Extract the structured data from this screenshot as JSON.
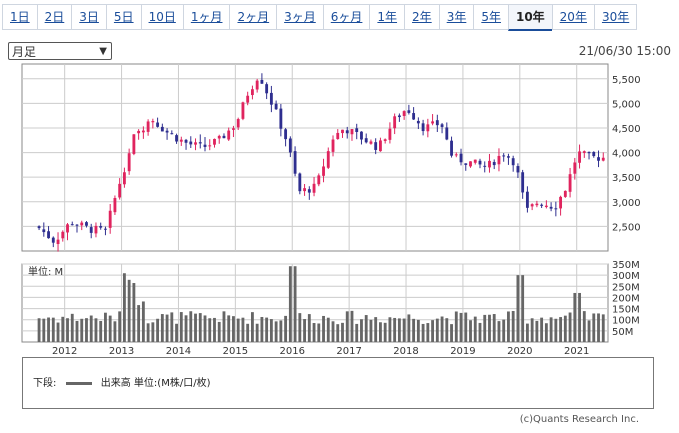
{
  "tabs": [
    "1日",
    "2日",
    "3日",
    "5日",
    "10日",
    "1ヶ月",
    "2ヶ月",
    "3ヶ月",
    "6ヶ月",
    "1年",
    "2年",
    "3年",
    "5年",
    "10年",
    "20年",
    "30年"
  ],
  "active_tab": 13,
  "period_select": "月足",
  "timestamp": "21/06/30 15:00",
  "volume_unit_label": "単位: M",
  "legend_text": "下段:",
  "legend_series_label": "出来高 単位:(M株/口/枚)",
  "copyright": "(c)Quants Research Inc.",
  "colors": {
    "up": "#e0245e",
    "down": "#2e2e8f",
    "volume": "#666666",
    "grid": "#cccccc"
  },
  "chart_data": [
    {
      "type": "candlestick",
      "y_ticks": [
        "2,500",
        "3,000",
        "3,500",
        "4,000",
        "4,500",
        "5,000",
        "5,500"
      ],
      "ylim": [
        2000,
        5800
      ],
      "x_labels": [
        "2012",
        "2013",
        "2014",
        "2015",
        "2016",
        "2017",
        "2018",
        "2019",
        "2020",
        "2021"
      ],
      "x_range": [
        2011.25,
        2021.55
      ],
      "series_close_approx": [
        [
          2011.6,
          2500
        ],
        [
          2011.9,
          2200
        ],
        [
          2012.2,
          2600
        ],
        [
          2012.5,
          2450
        ],
        [
          2012.8,
          2400
        ],
        [
          2013.0,
          3200
        ],
        [
          2013.3,
          4300
        ],
        [
          2013.6,
          4700
        ],
        [
          2013.9,
          4400
        ],
        [
          2014.2,
          4200
        ],
        [
          2014.5,
          4100
        ],
        [
          2014.8,
          4250
        ],
        [
          2015.1,
          4600
        ],
        [
          2015.3,
          5200
        ],
        [
          2015.5,
          5600
        ],
        [
          2015.8,
          4800
        ],
        [
          2016.0,
          4200
        ],
        [
          2016.2,
          3200
        ],
        [
          2016.5,
          3300
        ],
        [
          2016.8,
          4300
        ],
        [
          2017.0,
          4500
        ],
        [
          2017.3,
          4300
        ],
        [
          2017.6,
          4100
        ],
        [
          2017.9,
          4700
        ],
        [
          2018.1,
          4900
        ],
        [
          2018.4,
          4500
        ],
        [
          2018.7,
          4600
        ],
        [
          2018.9,
          3900
        ],
        [
          2019.2,
          3800
        ],
        [
          2019.5,
          3700
        ],
        [
          2019.8,
          4000
        ],
        [
          2020.0,
          3800
        ],
        [
          2020.2,
          2800
        ],
        [
          2020.4,
          3000
        ],
        [
          2020.7,
          2900
        ],
        [
          2020.9,
          3300
        ],
        [
          2021.1,
          4000
        ],
        [
          2021.3,
          3900
        ],
        [
          2021.5,
          3900
        ]
      ]
    },
    {
      "type": "bar",
      "title": "出来高",
      "y_ticks": [
        "350M",
        "300M",
        "250M",
        "200M",
        "150M",
        "100M",
        "50M"
      ],
      "ylim": [
        0,
        350
      ]
    }
  ]
}
